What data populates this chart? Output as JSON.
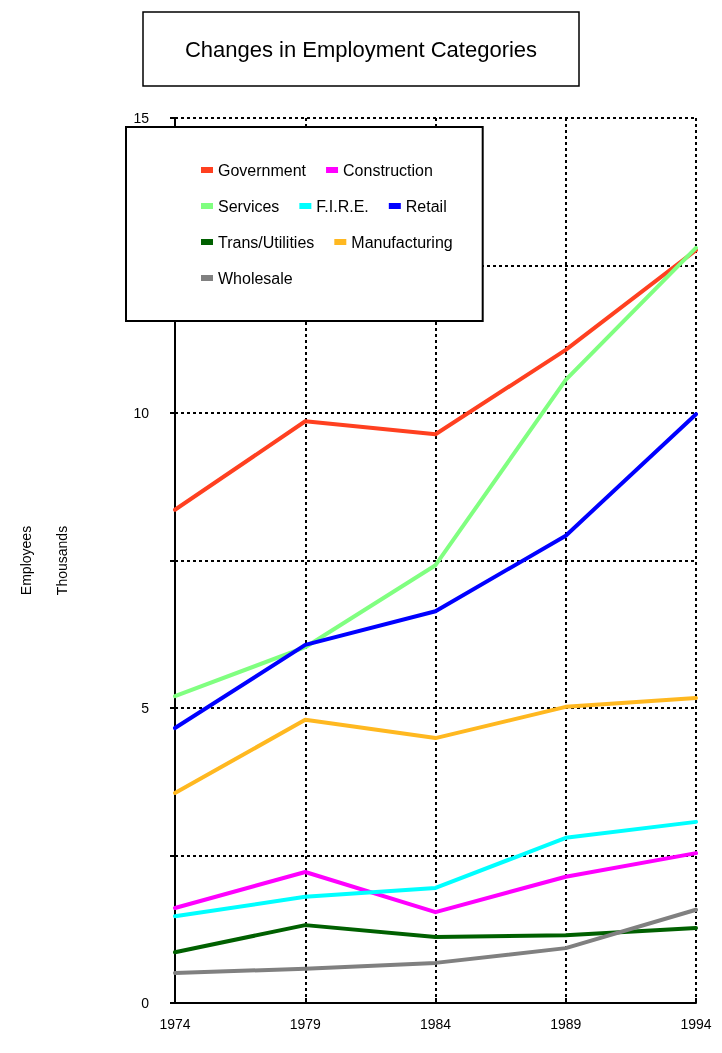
{
  "chart_data": {
    "type": "line",
    "title": "Changes in Employment Categories",
    "ylabel": "Employees\nThousands",
    "x": [
      1974,
      1979,
      1984,
      1989,
      1994
    ],
    "xlim": [
      1974,
      1994
    ],
    "xticks": [
      1974,
      1979,
      1984,
      1989,
      1994
    ],
    "ylim": [
      0,
      15
    ],
    "yticks": [
      0,
      {
        "value": 2.5,
        "label": null
      },
      5,
      {
        "value": 7.5,
        "label": null
      },
      10,
      {
        "value": 12.5,
        "label": null
      },
      15
    ],
    "grid": true,
    "legend": "top left",
    "marker": "none",
    "line_style": "solid",
    "series": [
      {
        "name": "Government",
        "color": "#ff4020",
        "values": [
          8.36,
          9.86,
          9.64,
          11.07,
          12.76
        ]
      },
      {
        "name": "Construction",
        "color": "#ff00ff",
        "values": [
          1.61,
          2.22,
          1.54,
          2.14,
          2.54
        ]
      },
      {
        "name": "Services",
        "color": "#80ff80",
        "values": [
          5.2,
          6.03,
          7.42,
          10.56,
          12.8
        ]
      },
      {
        "name": "F.I.R.E.",
        "color": "#00ffff",
        "values": [
          1.47,
          1.8,
          1.95,
          2.8,
          3.07
        ]
      },
      {
        "name": "Retail",
        "color": "#0000ff",
        "values": [
          4.66,
          6.07,
          6.64,
          7.92,
          9.98
        ]
      },
      {
        "name": "Trans/Utilities",
        "color": "#006000",
        "values": [
          0.86,
          1.32,
          1.12,
          1.15,
          1.27
        ]
      },
      {
        "name": "Manufacturing",
        "color": "#ffb820",
        "values": [
          3.56,
          4.8,
          4.49,
          5.02,
          5.17
        ]
      },
      {
        "name": "Wholesale",
        "color": "#808080",
        "values": [
          0.51,
          0.58,
          0.68,
          0.93,
          1.58
        ]
      }
    ]
  }
}
